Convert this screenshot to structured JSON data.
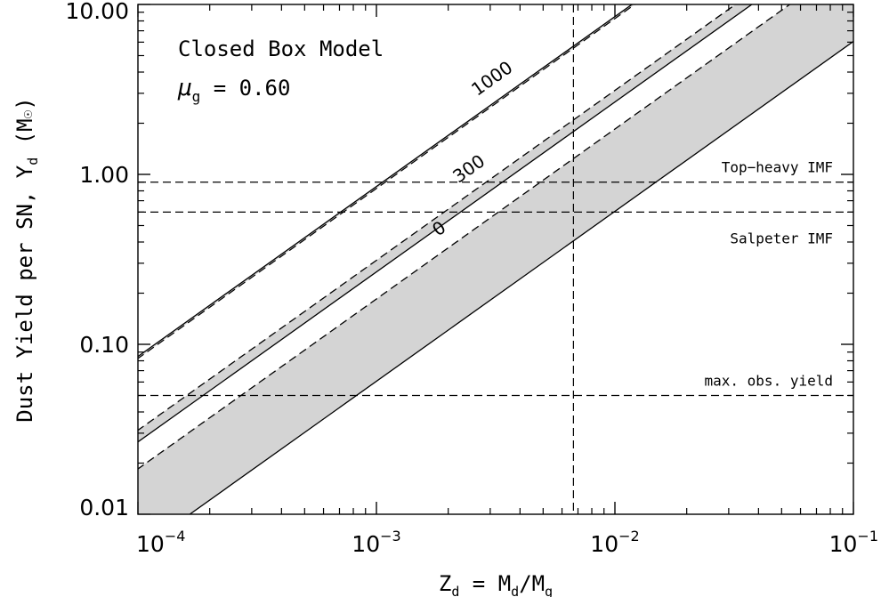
{
  "chart_data": {
    "type": "line",
    "title_line1": "Closed Box Model",
    "title_mu": "μ",
    "title_mu_sub": "g",
    "title_mu_value": " = 0.60",
    "xlabel": {
      "main": "Z",
      "sub": "d",
      "rest": " = M",
      "sub2": "d",
      "rest2": "/M",
      "sub3": "g"
    },
    "ylabel": {
      "main": "Dust Yield per SN, Y",
      "sub": "d",
      "unit_open": " (M",
      "unit_sym": "☉",
      "unit_close": ")"
    },
    "x_scale": "log",
    "y_scale": "log",
    "xlim": [
      0.0001,
      0.1
    ],
    "ylim": [
      0.01,
      10
    ],
    "xticks": [
      {
        "value": 0.0001,
        "base": "10",
        "exp": "−4"
      },
      {
        "value": 0.001,
        "base": "10",
        "exp": "−3"
      },
      {
        "value": 0.01,
        "base": "10",
        "exp": "−2"
      },
      {
        "value": 0.1,
        "base": "10",
        "exp": "−1"
      }
    ],
    "yticks": [
      {
        "value": 0.01,
        "label": "0.01"
      },
      {
        "value": 0.1,
        "label": "0.10"
      },
      {
        "value": 1,
        "label": "1.00"
      },
      {
        "value": 10,
        "label": "10.00"
      }
    ],
    "bands": [
      {
        "label": "0",
        "solid_norm": 0.4,
        "dashed_norm": 1.22,
        "label_at": 0.0021
      },
      {
        "label": "300",
        "solid_norm": 1.76,
        "dashed_norm": 2.06,
        "label_at": 0.0028
      },
      {
        "label": "1000",
        "solid_norm": 5.6,
        "dashed_norm": 5.45,
        "label_at": 0.0035
      }
    ],
    "band_slope": 1,
    "band_pivot_x": 0.0066,
    "band_fill_color": "#d4d4d4",
    "hlines": [
      {
        "y": 0.9,
        "label": "Top−heavy IMF",
        "label_pos": "above"
      },
      {
        "y": 0.6,
        "label": "Salpeter IMF",
        "label_pos": "below"
      },
      {
        "y": 0.05,
        "label": "max. obs. yield",
        "label_pos": "above"
      }
    ],
    "vline": {
      "x": 0.0067
    }
  }
}
